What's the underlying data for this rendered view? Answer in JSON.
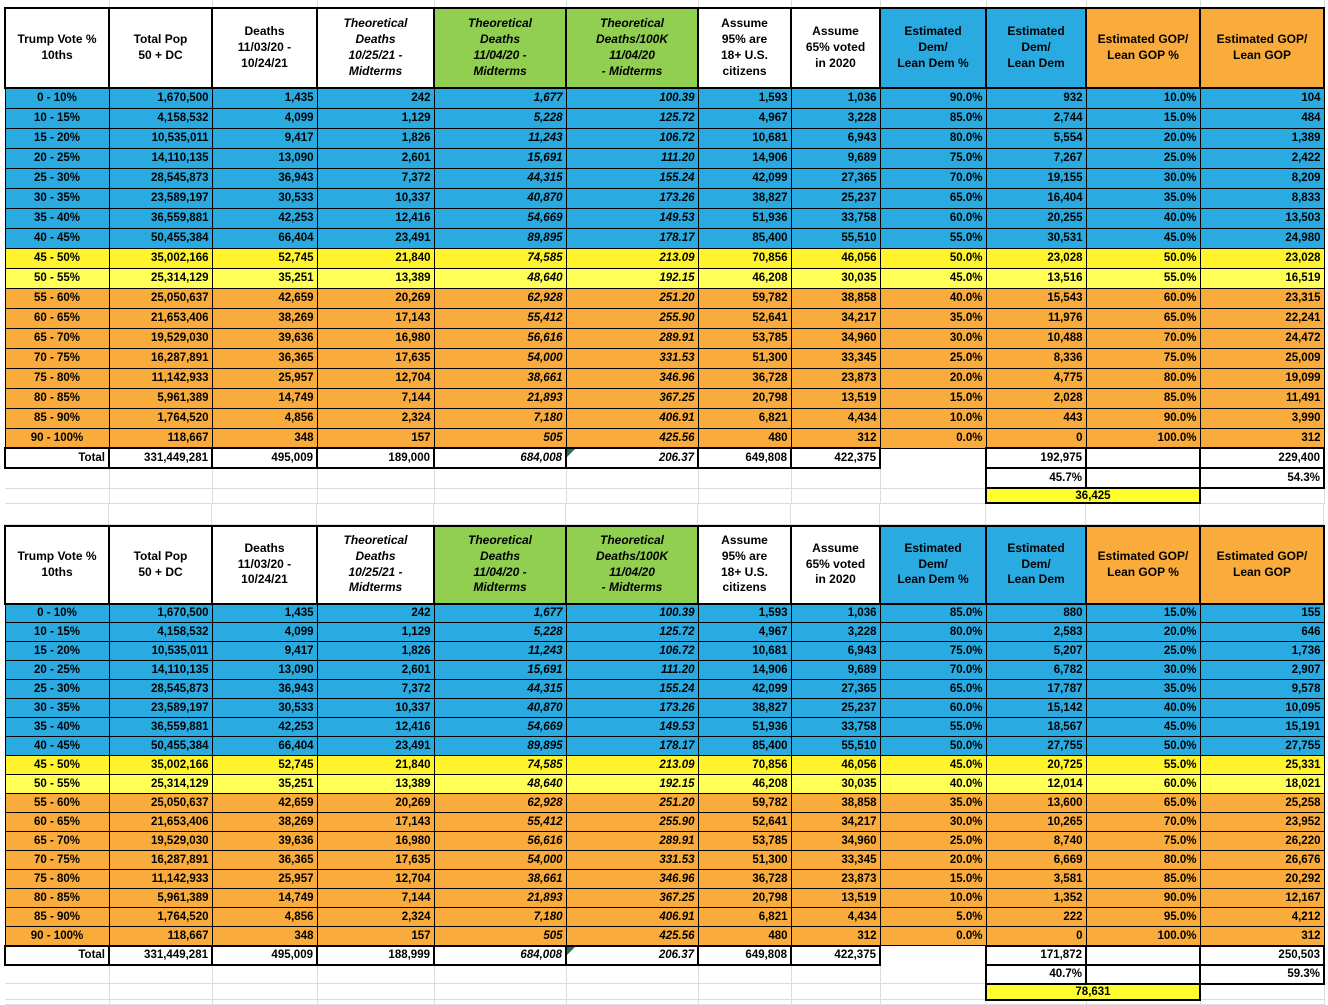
{
  "sheet": {
    "columns": [
      "Trump Vote %\n10ths",
      "Total Pop\n50 + DC",
      "Deaths\n11/03/20 -\n10/24/21",
      "Theoretical\nDeaths\n10/25/21 -\nMidterms",
      "Theoretical\nDeaths\n11/04/20 -\nMidterms",
      "Theoretical\nDeaths/100K\n11/04/20\n- Midterms",
      "Assume\n95% are\n18+ U.S.\ncitizens",
      "Assume\n65% voted\nin 2020",
      "Estimated\nDem/\nLean Dem %",
      "Estimated\nDem/\nLean Dem",
      "Estimated GOP/\nLean GOP %",
      "Estimated GOP/\nLean GOP"
    ],
    "colors": {
      "blue": "#29ABE2",
      "green": "#90CF50",
      "orange": "#F9AC3B",
      "yellow_row_1": "#FFF42B",
      "yellow_row_2": "#FFFF55",
      "yellow_summary": "#FFFF2E"
    },
    "tables": [
      {
        "rows": [
          [
            "0 - 10%",
            "1,670,500",
            "1,435",
            "242",
            "1,677",
            "100.39",
            "1,593",
            "1,036",
            "90.0%",
            "932",
            "10.0%",
            "104"
          ],
          [
            "10 - 15%",
            "4,158,532",
            "4,099",
            "1,129",
            "5,228",
            "125.72",
            "4,967",
            "3,228",
            "85.0%",
            "2,744",
            "15.0%",
            "484"
          ],
          [
            "15 - 20%",
            "10,535,011",
            "9,417",
            "1,826",
            "11,243",
            "106.72",
            "10,681",
            "6,943",
            "80.0%",
            "5,554",
            "20.0%",
            "1,389"
          ],
          [
            "20 - 25%",
            "14,110,135",
            "13,090",
            "2,601",
            "15,691",
            "111.20",
            "14,906",
            "9,689",
            "75.0%",
            "7,267",
            "25.0%",
            "2,422"
          ],
          [
            "25 - 30%",
            "28,545,873",
            "36,943",
            "7,372",
            "44,315",
            "155.24",
            "42,099",
            "27,365",
            "70.0%",
            "19,155",
            "30.0%",
            "8,209"
          ],
          [
            "30 - 35%",
            "23,589,197",
            "30,533",
            "10,337",
            "40,870",
            "173.26",
            "38,827",
            "25,237",
            "65.0%",
            "16,404",
            "35.0%",
            "8,833"
          ],
          [
            "35 - 40%",
            "36,559,881",
            "42,253",
            "12,416",
            "54,669",
            "149.53",
            "51,936",
            "33,758",
            "60.0%",
            "20,255",
            "40.0%",
            "13,503"
          ],
          [
            "40 - 45%",
            "50,455,384",
            "66,404",
            "23,491",
            "89,895",
            "178.17",
            "85,400",
            "55,510",
            "55.0%",
            "30,531",
            "45.0%",
            "24,980"
          ],
          [
            "45 - 50%",
            "35,002,166",
            "52,745",
            "21,840",
            "74,585",
            "213.09",
            "70,856",
            "46,056",
            "50.0%",
            "23,028",
            "50.0%",
            "23,028"
          ],
          [
            "50 - 55%",
            "25,314,129",
            "35,251",
            "13,389",
            "48,640",
            "192.15",
            "46,208",
            "30,035",
            "45.0%",
            "13,516",
            "55.0%",
            "16,519"
          ],
          [
            "55 - 60%",
            "25,050,637",
            "42,659",
            "20,269",
            "62,928",
            "251.20",
            "59,782",
            "38,858",
            "40.0%",
            "15,543",
            "60.0%",
            "23,315"
          ],
          [
            "60 - 65%",
            "21,653,406",
            "38,269",
            "17,143",
            "55,412",
            "255.90",
            "52,641",
            "34,217",
            "35.0%",
            "11,976",
            "65.0%",
            "22,241"
          ],
          [
            "65 - 70%",
            "19,529,030",
            "39,636",
            "16,980",
            "56,616",
            "289.91",
            "53,785",
            "34,960",
            "30.0%",
            "10,488",
            "70.0%",
            "24,472"
          ],
          [
            "70 - 75%",
            "16,287,891",
            "36,365",
            "17,635",
            "54,000",
            "331.53",
            "51,300",
            "33,345",
            "25.0%",
            "8,336",
            "75.0%",
            "25,009"
          ],
          [
            "75 - 80%",
            "11,142,933",
            "25,957",
            "12,704",
            "38,661",
            "346.96",
            "36,728",
            "23,873",
            "20.0%",
            "4,775",
            "80.0%",
            "19,099"
          ],
          [
            "80 - 85%",
            "5,961,389",
            "14,749",
            "7,144",
            "21,893",
            "367.25",
            "20,798",
            "13,519",
            "15.0%",
            "2,028",
            "85.0%",
            "11,491"
          ],
          [
            "85 - 90%",
            "1,764,520",
            "4,856",
            "2,324",
            "7,180",
            "406.91",
            "6,821",
            "4,434",
            "10.0%",
            "443",
            "90.0%",
            "3,990"
          ],
          [
            "90 - 100%",
            "118,667",
            "348",
            "157",
            "505",
            "425.56",
            "480",
            "312",
            "0.0%",
            "0",
            "100.0%",
            "312"
          ]
        ],
        "total_row": [
          "Total",
          "331,449,281",
          "495,009",
          "189,000",
          "684,008",
          "206.37",
          "649,808",
          "422,375",
          "",
          "192,975",
          "",
          "229,400"
        ],
        "dem_share": "45.7%",
        "gop_share": "54.3%",
        "gop_minus_dem": "36,425"
      },
      {
        "rows": [
          [
            "0 - 10%",
            "1,670,500",
            "1,435",
            "242",
            "1,677",
            "100.39",
            "1,593",
            "1,036",
            "85.0%",
            "880",
            "15.0%",
            "155"
          ],
          [
            "10 - 15%",
            "4,158,532",
            "4,099",
            "1,129",
            "5,228",
            "125.72",
            "4,967",
            "3,228",
            "80.0%",
            "2,583",
            "20.0%",
            "646"
          ],
          [
            "15 - 20%",
            "10,535,011",
            "9,417",
            "1,826",
            "11,243",
            "106.72",
            "10,681",
            "6,943",
            "75.0%",
            "5,207",
            "25.0%",
            "1,736"
          ],
          [
            "20 - 25%",
            "14,110,135",
            "13,090",
            "2,601",
            "15,691",
            "111.20",
            "14,906",
            "9,689",
            "70.0%",
            "6,782",
            "30.0%",
            "2,907"
          ],
          [
            "25 - 30%",
            "28,545,873",
            "36,943",
            "7,372",
            "44,315",
            "155.24",
            "42,099",
            "27,365",
            "65.0%",
            "17,787",
            "35.0%",
            "9,578"
          ],
          [
            "30 - 35%",
            "23,589,197",
            "30,533",
            "10,337",
            "40,870",
            "173.26",
            "38,827",
            "25,237",
            "60.0%",
            "15,142",
            "40.0%",
            "10,095"
          ],
          [
            "35 - 40%",
            "36,559,881",
            "42,253",
            "12,416",
            "54,669",
            "149.53",
            "51,936",
            "33,758",
            "55.0%",
            "18,567",
            "45.0%",
            "15,191"
          ],
          [
            "40 - 45%",
            "50,455,384",
            "66,404",
            "23,491",
            "89,895",
            "178.17",
            "85,400",
            "55,510",
            "50.0%",
            "27,755",
            "50.0%",
            "27,755"
          ],
          [
            "45 - 50%",
            "35,002,166",
            "52,745",
            "21,840",
            "74,585",
            "213.09",
            "70,856",
            "46,056",
            "45.0%",
            "20,725",
            "55.0%",
            "25,331"
          ],
          [
            "50 - 55%",
            "25,314,129",
            "35,251",
            "13,389",
            "48,640",
            "192.15",
            "46,208",
            "30,035",
            "40.0%",
            "12,014",
            "60.0%",
            "18,021"
          ],
          [
            "55 - 60%",
            "25,050,637",
            "42,659",
            "20,269",
            "62,928",
            "251.20",
            "59,782",
            "38,858",
            "35.0%",
            "13,600",
            "65.0%",
            "25,258"
          ],
          [
            "60 - 65%",
            "21,653,406",
            "38,269",
            "17,143",
            "55,412",
            "255.90",
            "52,641",
            "34,217",
            "30.0%",
            "10,265",
            "70.0%",
            "23,952"
          ],
          [
            "65 - 70%",
            "19,529,030",
            "39,636",
            "16,980",
            "56,616",
            "289.91",
            "53,785",
            "34,960",
            "25.0%",
            "8,740",
            "75.0%",
            "26,220"
          ],
          [
            "70 - 75%",
            "16,287,891",
            "36,365",
            "17,635",
            "54,000",
            "331.53",
            "51,300",
            "33,345",
            "20.0%",
            "6,669",
            "80.0%",
            "26,676"
          ],
          [
            "75 - 80%",
            "11,142,933",
            "25,957",
            "12,704",
            "38,661",
            "346.96",
            "36,728",
            "23,873",
            "15.0%",
            "3,581",
            "85.0%",
            "20,292"
          ],
          [
            "80 - 85%",
            "5,961,389",
            "14,749",
            "7,144",
            "21,893",
            "367.25",
            "20,798",
            "13,519",
            "10.0%",
            "1,352",
            "90.0%",
            "12,167"
          ],
          [
            "85 - 90%",
            "1,764,520",
            "4,856",
            "2,324",
            "7,180",
            "406.91",
            "6,821",
            "4,434",
            "5.0%",
            "222",
            "95.0%",
            "4,212"
          ],
          [
            "90 - 100%",
            "118,667",
            "348",
            "157",
            "505",
            "425.56",
            "480",
            "312",
            "0.0%",
            "0",
            "100.0%",
            "312"
          ]
        ],
        "total_row": [
          "Total",
          "331,449,281",
          "495,009",
          "188,999",
          "684,008",
          "206.37",
          "649,808",
          "422,375",
          "",
          "171,872",
          "",
          "250,503"
        ],
        "dem_share": "40.7%",
        "gop_share": "59.3%",
        "gop_minus_dem": "78,631"
      }
    ]
  }
}
